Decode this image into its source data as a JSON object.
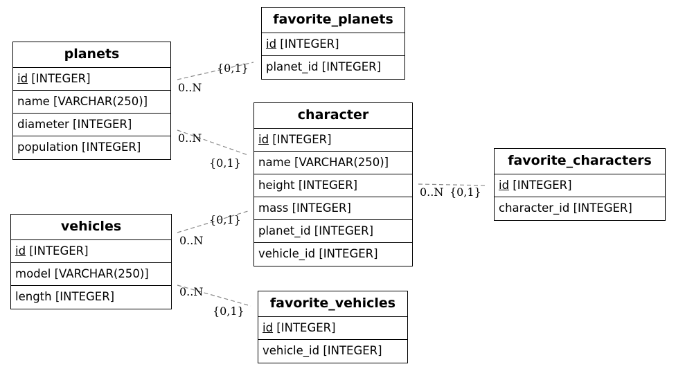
{
  "tables": {
    "planets": {
      "title": "planets",
      "rows": [
        {
          "pk": "id",
          "rest": " [INTEGER]"
        },
        {
          "pk": "",
          "rest": "name [VARCHAR(250)]"
        },
        {
          "pk": "",
          "rest": "diameter [INTEGER]"
        },
        {
          "pk": "",
          "rest": "population [INTEGER]"
        }
      ]
    },
    "favorite_planets": {
      "title": "favorite_planets",
      "rows": [
        {
          "pk": "id",
          "rest": " [INTEGER]"
        },
        {
          "pk": "",
          "rest": "planet_id [INTEGER]"
        }
      ]
    },
    "character": {
      "title": "character",
      "rows": [
        {
          "pk": "id",
          "rest": " [INTEGER]"
        },
        {
          "pk": "",
          "rest": "name [VARCHAR(250)]"
        },
        {
          "pk": "",
          "rest": "height [INTEGER]"
        },
        {
          "pk": "",
          "rest": "mass [INTEGER]"
        },
        {
          "pk": "",
          "rest": "planet_id [INTEGER]"
        },
        {
          "pk": "",
          "rest": "vehicle_id [INTEGER]"
        }
      ]
    },
    "favorite_characters": {
      "title": "favorite_characters",
      "rows": [
        {
          "pk": "id",
          "rest": " [INTEGER]"
        },
        {
          "pk": "",
          "rest": "character_id [INTEGER]"
        }
      ]
    },
    "vehicles": {
      "title": "vehicles",
      "rows": [
        {
          "pk": "id",
          "rest": " [INTEGER]"
        },
        {
          "pk": "",
          "rest": "model [VARCHAR(250)]"
        },
        {
          "pk": "",
          "rest": "length [INTEGER]"
        }
      ]
    },
    "favorite_vehicles": {
      "title": "favorite_vehicles",
      "rows": [
        {
          "pk": "id",
          "rest": " [INTEGER]"
        },
        {
          "pk": "",
          "rest": "vehicle_id [INTEGER]"
        }
      ]
    }
  },
  "relations": [
    {
      "from": "planets",
      "to": "favorite_planets",
      "many": "0..N",
      "one": "{0,1}"
    },
    {
      "from": "planets",
      "to": "character",
      "many": "0..N",
      "one": "{0,1}"
    },
    {
      "from": "vehicles",
      "to": "character",
      "many": "0..N",
      "one": "{0,1}"
    },
    {
      "from": "vehicles",
      "to": "favorite_vehicles",
      "many": "0..N",
      "one": "{0,1}"
    },
    {
      "from": "character",
      "to": "favorite_characters",
      "many": "0..N",
      "one": "{0,1}"
    }
  ],
  "colors": {
    "border": "#000000",
    "edge": "#888888",
    "background": "#ffffff"
  }
}
